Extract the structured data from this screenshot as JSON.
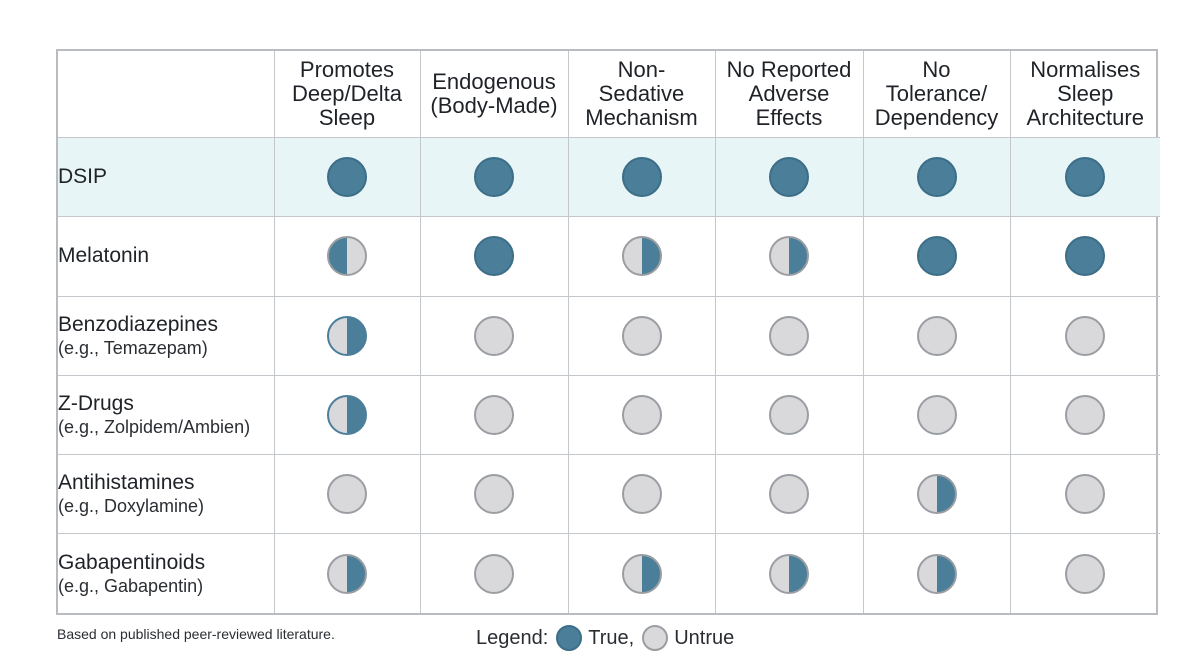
{
  "table": {
    "columns": [
      "Promotes Deep/Delta Sleep",
      "Endogenous (Body-Made)",
      "Non-Sedative Mechanism",
      "No Reported Adverse Effects",
      "No Tolerance/ Dependency",
      "Normalises Sleep Architecture"
    ],
    "column_lines": [
      [
        "Promotes",
        "Deep/Delta",
        "Sleep"
      ],
      [
        "Endogenous",
        "(Body-Made)"
      ],
      [
        "Non-",
        "Sedative",
        "Mechanism"
      ],
      [
        "No Reported",
        "Adverse",
        "Effects"
      ],
      [
        "No",
        "Tolerance/",
        "Dependency"
      ],
      [
        "Normalises",
        "Sleep",
        "Architecture"
      ]
    ],
    "rows": [
      {
        "label": "DSIP",
        "sublabel": "",
        "highlight": true,
        "values": [
          "true",
          "true",
          "true",
          "true",
          "true",
          "true"
        ]
      },
      {
        "label": "Melatonin",
        "sublabel": "",
        "highlight": false,
        "values": [
          "partial-left",
          "true",
          "partial-right",
          "partial-right",
          "true",
          "true"
        ]
      },
      {
        "label": "Benzodiazepines",
        "sublabel": "(e.g., Temazepam)",
        "highlight": false,
        "values": [
          "partial-right-strong",
          "untrue",
          "untrue",
          "untrue",
          "untrue",
          "untrue"
        ]
      },
      {
        "label": "Z-Drugs",
        "sublabel": "(e.g., Zolpidem/Ambien)",
        "highlight": false,
        "values": [
          "partial-right-strong",
          "untrue",
          "untrue",
          "untrue",
          "untrue",
          "untrue"
        ]
      },
      {
        "label": "Antihistamines",
        "sublabel": "(e.g., Doxylamine)",
        "highlight": false,
        "values": [
          "untrue",
          "untrue",
          "untrue",
          "untrue",
          "partial-right",
          "untrue"
        ]
      },
      {
        "label": "Gabapentinoids",
        "sublabel": "(e.g., Gabapentin)",
        "highlight": false,
        "values": [
          "partial-right",
          "untrue",
          "partial-right",
          "partial-right",
          "partial-right",
          "untrue"
        ]
      }
    ]
  },
  "footnote": "Based on published peer-reviewed literature.",
  "legend": {
    "prefix": "Legend:",
    "true_label": "True,",
    "untrue_label": "Untrue"
  },
  "colors": {
    "true_fill": "#4a7e99",
    "untrue_fill": "#d9d9db",
    "highlight_row": "#e7f5f6",
    "grid": "#c4c8cc"
  }
}
